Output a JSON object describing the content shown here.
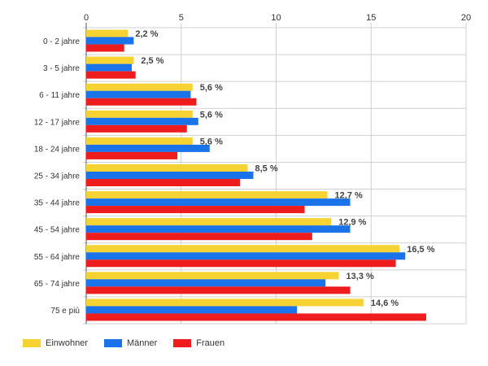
{
  "chart_data": {
    "type": "bar",
    "orientation": "horizontal",
    "categories": [
      "0 - 2 jahre",
      "3 - 5 jahre",
      "6 - 11 jahre",
      "12 - 17 jahre",
      "18 - 24 jahre",
      "25 - 34 jahre",
      "35 - 44 jahre",
      "45 - 54 jahre",
      "55 - 64 jahre",
      "65 - 74 jahre",
      "75 e più"
    ],
    "series": [
      {
        "name": "Einwohner",
        "color": "#F7D233",
        "values": [
          2.2,
          2.5,
          5.6,
          5.6,
          5.6,
          8.5,
          12.7,
          12.9,
          16.5,
          13.3,
          14.6
        ]
      },
      {
        "name": "Männer",
        "color": "#1A73E8",
        "values": [
          2.5,
          2.4,
          5.5,
          5.9,
          6.5,
          8.8,
          13.9,
          13.9,
          16.8,
          12.6,
          11.1
        ]
      },
      {
        "name": "Frauen",
        "color": "#EE1C1C",
        "values": [
          2.0,
          2.6,
          5.8,
          5.3,
          4.8,
          8.1,
          11.5,
          11.9,
          16.3,
          13.9,
          17.9
        ]
      }
    ],
    "data_labels": [
      "2,2 %",
      "2,5 %",
      "5,6 %",
      "5,6 %",
      "5,6 %",
      "8,5 %",
      "12,7 %",
      "12,9 %",
      "16,5 %",
      "13,3 %",
      "14,6 %"
    ],
    "xlim": [
      0,
      20
    ],
    "xticks": [
      0,
      5,
      10,
      15,
      20
    ],
    "x_axis_position": "top",
    "grid": true,
    "legend_position": "bottom-left"
  }
}
